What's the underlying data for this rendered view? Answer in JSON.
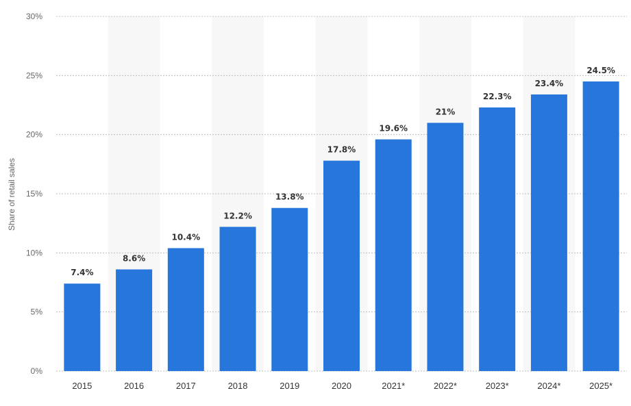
{
  "chart_data": {
    "type": "bar",
    "categories": [
      "2015",
      "2016",
      "2017",
      "2018",
      "2019",
      "2020",
      "2021*",
      "2022*",
      "2023*",
      "2024*",
      "2025*"
    ],
    "values": [
      7.4,
      8.6,
      10.4,
      12.2,
      13.8,
      17.8,
      19.6,
      21,
      22.3,
      23.4,
      24.5
    ],
    "value_labels": [
      "7.4%",
      "8.6%",
      "10.4%",
      "12.2%",
      "13.8%",
      "17.8%",
      "19.6%",
      "21%",
      "22.3%",
      "23.4%",
      "24.5%"
    ],
    "title": "",
    "xlabel": "",
    "ylabel": "Share of retail sales",
    "ylim": [
      0,
      30
    ],
    "yticks": [
      0,
      5,
      10,
      15,
      20,
      25,
      30
    ],
    "ytick_labels": [
      "0%",
      "5%",
      "10%",
      "15%",
      "20%",
      "25%",
      "30%"
    ],
    "grid": true,
    "legend": "none",
    "bar_color": "#2776dc",
    "band_color": "#f7f7f7"
  }
}
